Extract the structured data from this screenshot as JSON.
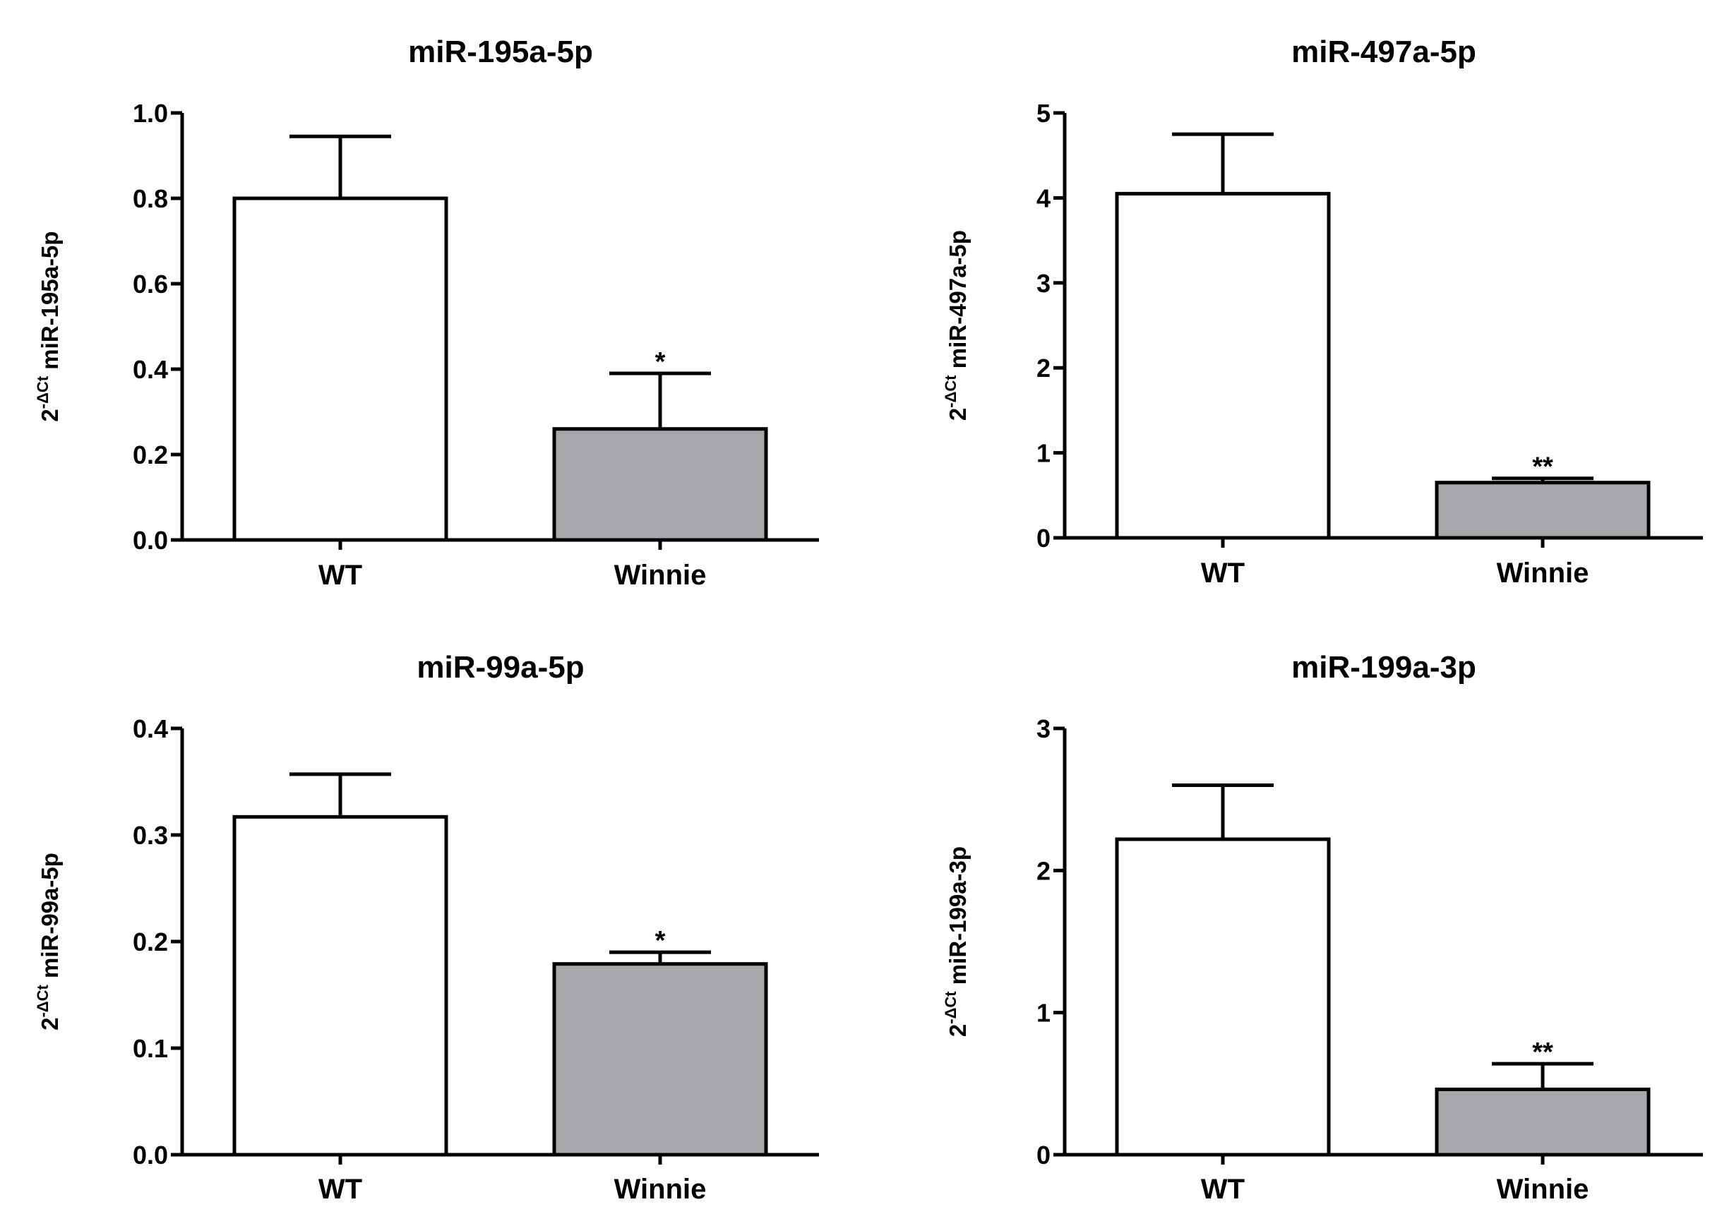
{
  "figure": {
    "background": "#ffffff"
  },
  "chart_data": [
    {
      "type": "bar",
      "title": "miR-195a-5p",
      "categories": [
        "WT",
        "Winnie"
      ],
      "values": [
        0.8,
        0.26
      ],
      "errors": [
        0.145,
        0.13
      ],
      "significance": [
        "",
        "*"
      ],
      "ylabel": {
        "base": "2",
        "sup": "-ΔCt",
        "text": "miR-195a-5p"
      },
      "ylim": [
        0,
        1.0
      ],
      "yticks": [
        0.0,
        0.2,
        0.4,
        0.6,
        0.8,
        1.0
      ],
      "ytick_labels": [
        "0.0",
        "0.2",
        "0.4",
        "0.6",
        "0.8",
        "1.0"
      ],
      "bar_colors": [
        "#ffffff",
        "#a7a6ab"
      ],
      "grid": false
    },
    {
      "type": "bar",
      "title": "miR-497a-5p",
      "categories": [
        "WT",
        "Winnie"
      ],
      "values": [
        4.05,
        0.65
      ],
      "errors": [
        0.7,
        0.05
      ],
      "significance": [
        "",
        "**"
      ],
      "ylabel": {
        "base": "2",
        "sup": "-ΔCt",
        "text": "miR-497a-5p"
      },
      "ylim": [
        0,
        5
      ],
      "yticks": [
        0,
        1,
        2,
        3,
        4,
        5
      ],
      "ytick_labels": [
        "0",
        "1",
        "2",
        "3",
        "4",
        "5"
      ],
      "bar_colors": [
        "#ffffff",
        "#a7a6ab"
      ],
      "grid": false
    },
    {
      "type": "bar",
      "title": "miR-99a-5p",
      "categories": [
        "WT",
        "Winnie"
      ],
      "values": [
        0.317,
        0.179
      ],
      "errors": [
        0.04,
        0.011
      ],
      "significance": [
        "",
        "*"
      ],
      "ylabel": {
        "base": "2",
        "sup": "-ΔCt",
        "text": "miR-99a-5p"
      },
      "ylim": [
        0,
        0.4
      ],
      "yticks": [
        0.0,
        0.1,
        0.2,
        0.3,
        0.4
      ],
      "ytick_labels": [
        "0.0",
        "0.1",
        "0.2",
        "0.3",
        "0.4"
      ],
      "bar_colors": [
        "#ffffff",
        "#a7a6ab"
      ],
      "grid": false
    },
    {
      "type": "bar",
      "title": "miR-199a-3p",
      "categories": [
        "WT",
        "Winnie"
      ],
      "values": [
        2.22,
        0.46
      ],
      "errors": [
        0.38,
        0.18
      ],
      "significance": [
        "",
        "**"
      ],
      "ylabel": {
        "base": "2",
        "sup": "-ΔCt",
        "text": "miR-199a-3p"
      },
      "ylim": [
        0,
        3
      ],
      "yticks": [
        0,
        1,
        2,
        3
      ],
      "ytick_labels": [
        "0",
        "1",
        "2",
        "3"
      ],
      "bar_colors": [
        "#ffffff",
        "#a7a6ab"
      ],
      "grid": false
    }
  ]
}
